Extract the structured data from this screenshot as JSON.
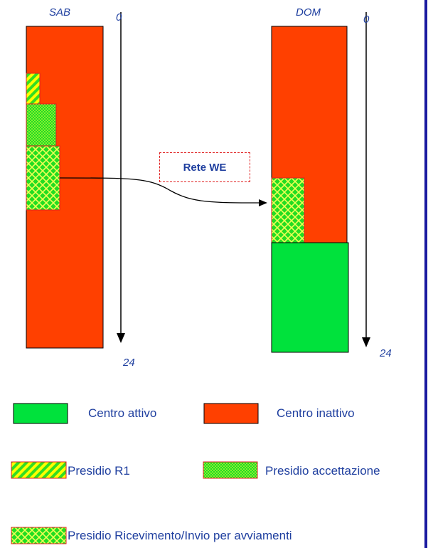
{
  "days": {
    "saturday": {
      "label": "SAB",
      "time_start": "0",
      "time_end": "24"
    },
    "sunday": {
      "label": "DOM",
      "time_start": "0",
      "time_end": "24"
    }
  },
  "network_label": "Rete WE",
  "legend": {
    "active_center": "Centro attivo",
    "inactive_center": "Centro inattivo",
    "presidio_r1": "Presidio R1",
    "presidio_accettazione": "Presidio accettazione",
    "presidio_ricevimento": "Presidio Ricevimento/Invio per avviamenti"
  },
  "colors": {
    "active": "#00e23c",
    "inactive": "#ff4000",
    "outline": "#000000",
    "text": "#1f3f9f",
    "border_line": "#1a1aa0"
  }
}
